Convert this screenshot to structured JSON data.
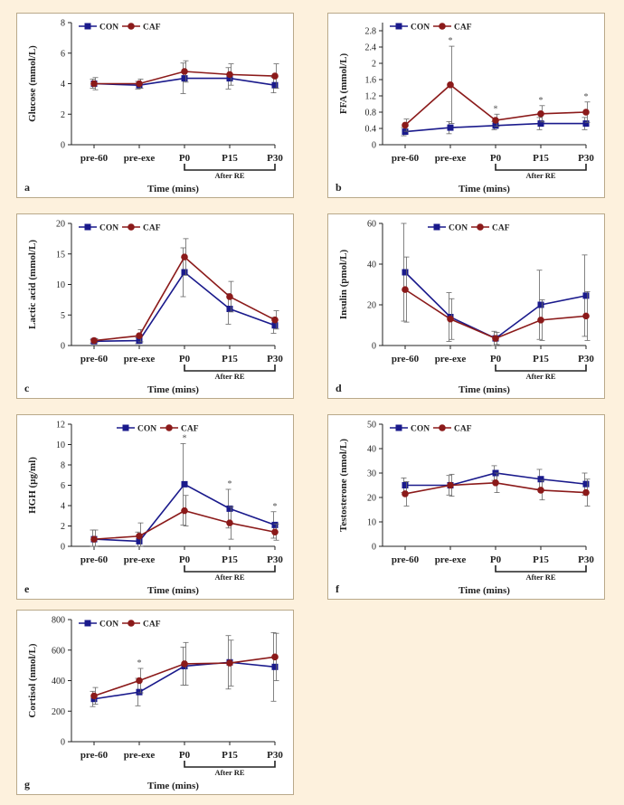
{
  "chart_data": [
    {
      "type": "line",
      "panel_letter": "a",
      "ylabel": "Glucose (mmol/L)",
      "xlabel": "Time (mins)",
      "group_label": "After RE",
      "categories": [
        "pre-60",
        "pre-exe",
        "P0",
        "P15",
        "P30"
      ],
      "ylim": [
        0,
        8
      ],
      "yticks": [
        0,
        2,
        4,
        6,
        8
      ],
      "legend": "top-left",
      "series": [
        {
          "name": "CON",
          "color": "#1a1a8c",
          "marker": "square",
          "values": [
            4.0,
            3.9,
            4.35,
            4.35,
            3.9
          ],
          "err": [
            0.3,
            0.25,
            1.0,
            0.7,
            0.5
          ]
        },
        {
          "name": "CAF",
          "color": "#8b1a1a",
          "marker": "circle",
          "values": [
            4.0,
            4.0,
            4.8,
            4.6,
            4.5
          ],
          "err": [
            0.4,
            0.3,
            0.7,
            0.7,
            0.8
          ]
        }
      ],
      "significance": []
    },
    {
      "type": "line",
      "panel_letter": "b",
      "ylabel": "FFA (mmol/L)",
      "xlabel": "Time (mins)",
      "group_label": "After RE",
      "categories": [
        "pre-60",
        "pre-exe",
        "P0",
        "P15",
        "P30"
      ],
      "ylim": [
        0,
        3.0
      ],
      "yticks": [
        0,
        0.4,
        0.8,
        1.2,
        1.6,
        2.0,
        2.4,
        2.8
      ],
      "legend": "top-left",
      "series": [
        {
          "name": "CON",
          "color": "#1a1a8c",
          "marker": "square",
          "values": [
            0.32,
            0.42,
            0.47,
            0.52,
            0.52
          ],
          "err": [
            0.1,
            0.15,
            0.1,
            0.15,
            0.15
          ]
        },
        {
          "name": "CAF",
          "color": "#8b1a1a",
          "marker": "circle",
          "values": [
            0.48,
            1.47,
            0.6,
            0.76,
            0.8
          ],
          "err": [
            0.15,
            0.95,
            0.15,
            0.2,
            0.25
          ]
        }
      ],
      "significance": [
        1,
        2,
        3,
        4
      ]
    },
    {
      "type": "line",
      "panel_letter": "c",
      "ylabel": "Lactic acid (mmol/L)",
      "xlabel": "Time (mins)",
      "group_label": "After RE",
      "categories": [
        "pre-60",
        "pre-exe",
        "P0",
        "P15",
        "P30"
      ],
      "ylim": [
        0,
        20
      ],
      "yticks": [
        0,
        5,
        10,
        15,
        20
      ],
      "legend": "top-left",
      "series": [
        {
          "name": "CON",
          "color": "#1a1a8c",
          "marker": "square",
          "values": [
            0.7,
            0.8,
            12.0,
            6.0,
            3.3
          ],
          "err": [
            0.3,
            0.5,
            4.0,
            2.5,
            1.3
          ]
        },
        {
          "name": "CAF",
          "color": "#8b1a1a",
          "marker": "circle",
          "values": [
            0.8,
            1.6,
            14.5,
            8.0,
            4.2
          ],
          "err": [
            0.3,
            1.0,
            3.0,
            2.5,
            1.5
          ]
        }
      ],
      "significance": []
    },
    {
      "type": "line",
      "panel_letter": "d",
      "ylabel": "Insulin (pmol/L)",
      "xlabel": "Time (mins)",
      "group_label": "After RE",
      "categories": [
        "pre-60",
        "pre-exe",
        "P0",
        "P15",
        "P30"
      ],
      "ylim": [
        0,
        60
      ],
      "yticks": [
        0,
        20,
        40,
        60
      ],
      "legend": "top-right",
      "series": [
        {
          "name": "CON",
          "color": "#1a1a8c",
          "marker": "square",
          "values": [
            36,
            14,
            3.5,
            20,
            24.5
          ],
          "err": [
            24,
            12,
            3.5,
            17,
            20
          ]
        },
        {
          "name": "CAF",
          "color": "#8b1a1a",
          "marker": "circle",
          "values": [
            27.5,
            13,
            3.5,
            12.5,
            14.5
          ],
          "err": [
            16,
            10,
            3,
            10,
            12
          ]
        }
      ],
      "significance": []
    },
    {
      "type": "line",
      "panel_letter": "e",
      "ylabel": "HGH (µg/ml)",
      "xlabel": "Time (mins)",
      "group_label": "After RE",
      "categories": [
        "pre-60",
        "pre-exe",
        "P0",
        "P15",
        "P30"
      ],
      "ylim": [
        0,
        12
      ],
      "yticks": [
        0,
        2,
        4,
        6,
        8,
        10,
        12
      ],
      "legend": "top-right",
      "series": [
        {
          "name": "CON",
          "color": "#1a1a8c",
          "marker": "square",
          "values": [
            0.7,
            0.5,
            6.1,
            3.7,
            2.1
          ],
          "err": [
            0.9,
            0.9,
            4.0,
            1.9,
            1.3
          ]
        },
        {
          "name": "CAF",
          "color": "#8b1a1a",
          "marker": "circle",
          "values": [
            0.7,
            1.0,
            3.5,
            2.3,
            1.4
          ],
          "err": [
            0.9,
            1.3,
            1.5,
            1.6,
            0.8
          ]
        }
      ],
      "significance": [
        2,
        3,
        4
      ]
    },
    {
      "type": "line",
      "panel_letter": "f",
      "ylabel": "Testosterone (nmol/L)",
      "xlabel": "Time (mins)",
      "group_label": "After RE",
      "categories": [
        "pre-60",
        "pre-exe",
        "P0",
        "P15",
        "P30"
      ],
      "ylim": [
        0,
        50
      ],
      "yticks": [
        0,
        10,
        20,
        30,
        40,
        50
      ],
      "legend": "top-left",
      "series": [
        {
          "name": "CON",
          "color": "#1a1a8c",
          "marker": "square",
          "values": [
            25,
            25,
            30,
            27.5,
            25.5
          ],
          "err": [
            3,
            4,
            3,
            4,
            4.5
          ]
        },
        {
          "name": "CAF",
          "color": "#8b1a1a",
          "marker": "circle",
          "values": [
            21.5,
            25,
            26,
            23,
            22
          ],
          "err": [
            5,
            4.5,
            4,
            4,
            5.5
          ]
        }
      ],
      "significance": []
    },
    {
      "type": "line",
      "panel_letter": "g",
      "ylabel": "Cortisol (nmol/L)",
      "xlabel": "Time (mins)",
      "group_label": "After RE",
      "categories": [
        "pre-60",
        "pre-exe",
        "P0",
        "P15",
        "P30"
      ],
      "ylim": [
        0,
        800
      ],
      "yticks": [
        0,
        200,
        400,
        600,
        800
      ],
      "legend": "top-left",
      "series": [
        {
          "name": "CON",
          "color": "#1a1a8c",
          "marker": "square",
          "values": [
            280,
            325,
            495,
            520,
            490
          ],
          "err": [
            50,
            90,
            125,
            175,
            225
          ]
        },
        {
          "name": "CAF",
          "color": "#8b1a1a",
          "marker": "circle",
          "values": [
            300,
            400,
            510,
            515,
            555
          ],
          "err": [
            55,
            80,
            140,
            150,
            155
          ]
        }
      ],
      "significance": [
        1
      ]
    }
  ]
}
